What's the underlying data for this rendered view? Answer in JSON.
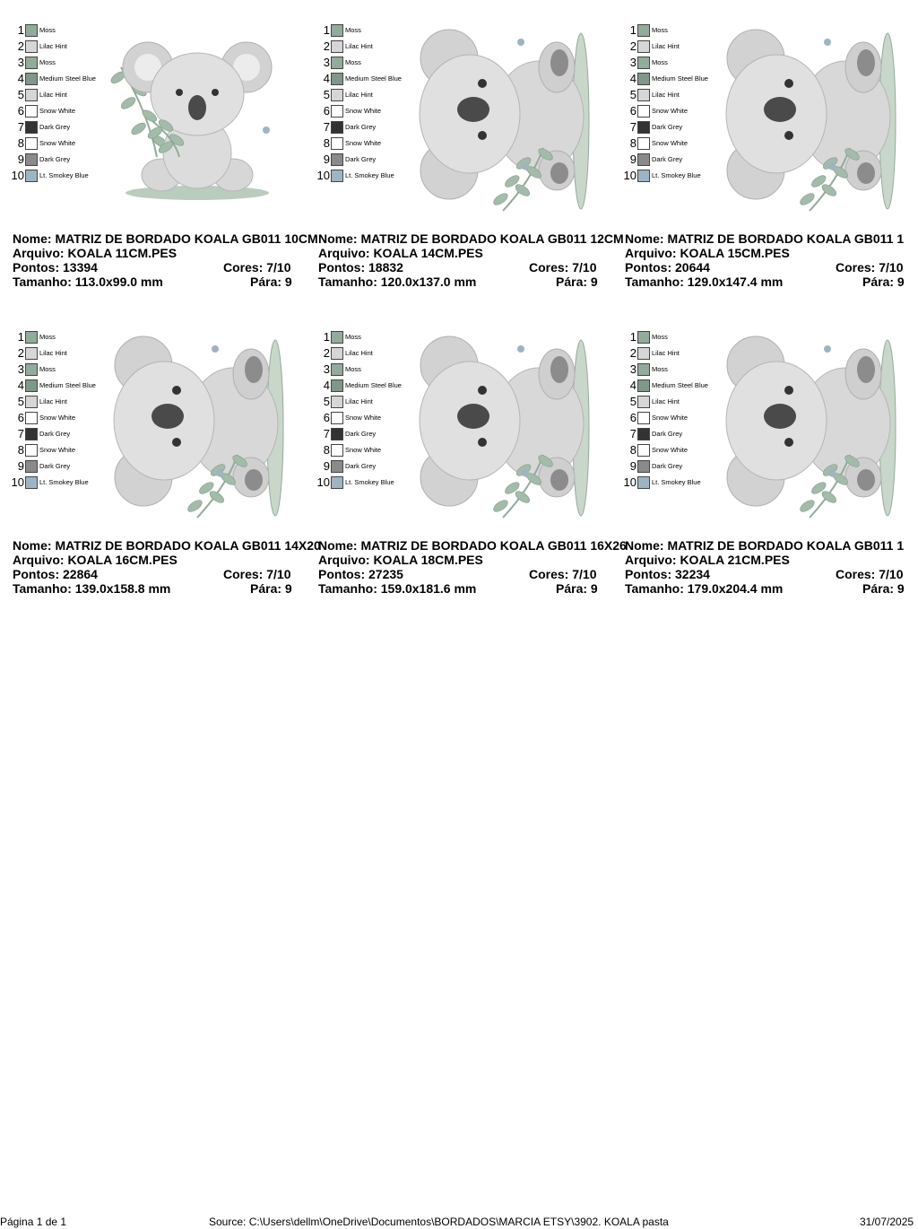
{
  "palette": [
    {
      "num": "1",
      "name": "Moss",
      "color": "#93ab9b"
    },
    {
      "num": "2",
      "name": "Lilac Hint",
      "color": "#d6d6d6"
    },
    {
      "num": "3",
      "name": "Moss",
      "color": "#93ab9b"
    },
    {
      "num": "4",
      "name": "Medium Steel Blue",
      "color": "#7f9889"
    },
    {
      "num": "5",
      "name": "Lilac Hint",
      "color": "#d6d6d6"
    },
    {
      "num": "6",
      "name": "Snow White",
      "color": "#ffffff"
    },
    {
      "num": "7",
      "name": "Dark Grey",
      "color": "#333333"
    },
    {
      "num": "8",
      "name": "Snow White",
      "color": "#ffffff"
    },
    {
      "num": "9",
      "name": "Dark Grey",
      "color": "#8a8a8a"
    },
    {
      "num": "10",
      "name": "Lt. Smokey Blue",
      "color": "#9fb4c3"
    }
  ],
  "designs": [
    {
      "nome": "Nome: MATRIZ DE BORDADO KOALA GB011 10CM",
      "arquivo": "Arquivo: KOALA 11CM.PES",
      "pontos": "Pontos: 13394",
      "cores": "Cores: 7/10",
      "tamanho": "Tamanho: 113.0x99.0 mm",
      "para": "Pára: 9",
      "pose": "sitting"
    },
    {
      "nome": "Nome: MATRIZ DE BORDADO KOALA GB011 12CM",
      "arquivo": "Arquivo: KOALA 14CM.PES",
      "pontos": "Pontos: 18832",
      "cores": "Cores: 7/10",
      "tamanho": "Tamanho: 120.0x137.0 mm",
      "para": "Pára: 9",
      "pose": "lying"
    },
    {
      "nome": "Nome: MATRIZ DE BORDADO KOALA GB011 1",
      "arquivo": "Arquivo: KOALA 15CM.PES",
      "pontos": "Pontos: 20644",
      "cores": "Cores: 7/10",
      "tamanho": "Tamanho: 129.0x147.4 mm",
      "para": "Pára: 9",
      "pose": "lying"
    },
    {
      "nome": "Nome: MATRIZ DE BORDADO KOALA GB011 14X20",
      "arquivo": "Arquivo: KOALA 16CM.PES",
      "pontos": "Pontos: 22864",
      "cores": "Cores: 7/10",
      "tamanho": "Tamanho: 139.0x158.8 mm",
      "para": "Pára: 9",
      "pose": "lying"
    },
    {
      "nome": "Nome: MATRIZ DE BORDADO KOALA GB011 16X26",
      "arquivo": "Arquivo: KOALA 18CM.PES",
      "pontos": "Pontos: 27235",
      "cores": "Cores: 7/10",
      "tamanho": "Tamanho: 159.0x181.6 mm",
      "para": "Pára: 9",
      "pose": "lying"
    },
    {
      "nome": "Nome: MATRIZ DE BORDADO KOALA GB011 1",
      "arquivo": "Arquivo: KOALA 21CM.PES",
      "pontos": "Pontos: 32234",
      "cores": "Cores: 7/10",
      "tamanho": "Tamanho: 179.0x204.4 mm",
      "para": "Pára: 9",
      "pose": "lying"
    }
  ],
  "footer": {
    "page": "Página 1 de 1",
    "source": "Source: C:\\Users\\dellm\\OneDrive\\Documentos\\BORDADOS\\MARCIA ETSY\\3902. KOALA pasta",
    "date": "31/07/2025"
  }
}
